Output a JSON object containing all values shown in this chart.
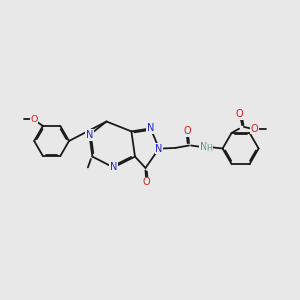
{
  "background_color": "#e8e8e8",
  "bond_color": "#1a1a1a",
  "n_color": "#2222cc",
  "o_color": "#cc2222",
  "nh_color": "#5a9090",
  "figsize": [
    3.0,
    3.0
  ],
  "dpi": 100,
  "xlim": [
    0,
    10
  ],
  "ylim": [
    1.5,
    8.5
  ]
}
